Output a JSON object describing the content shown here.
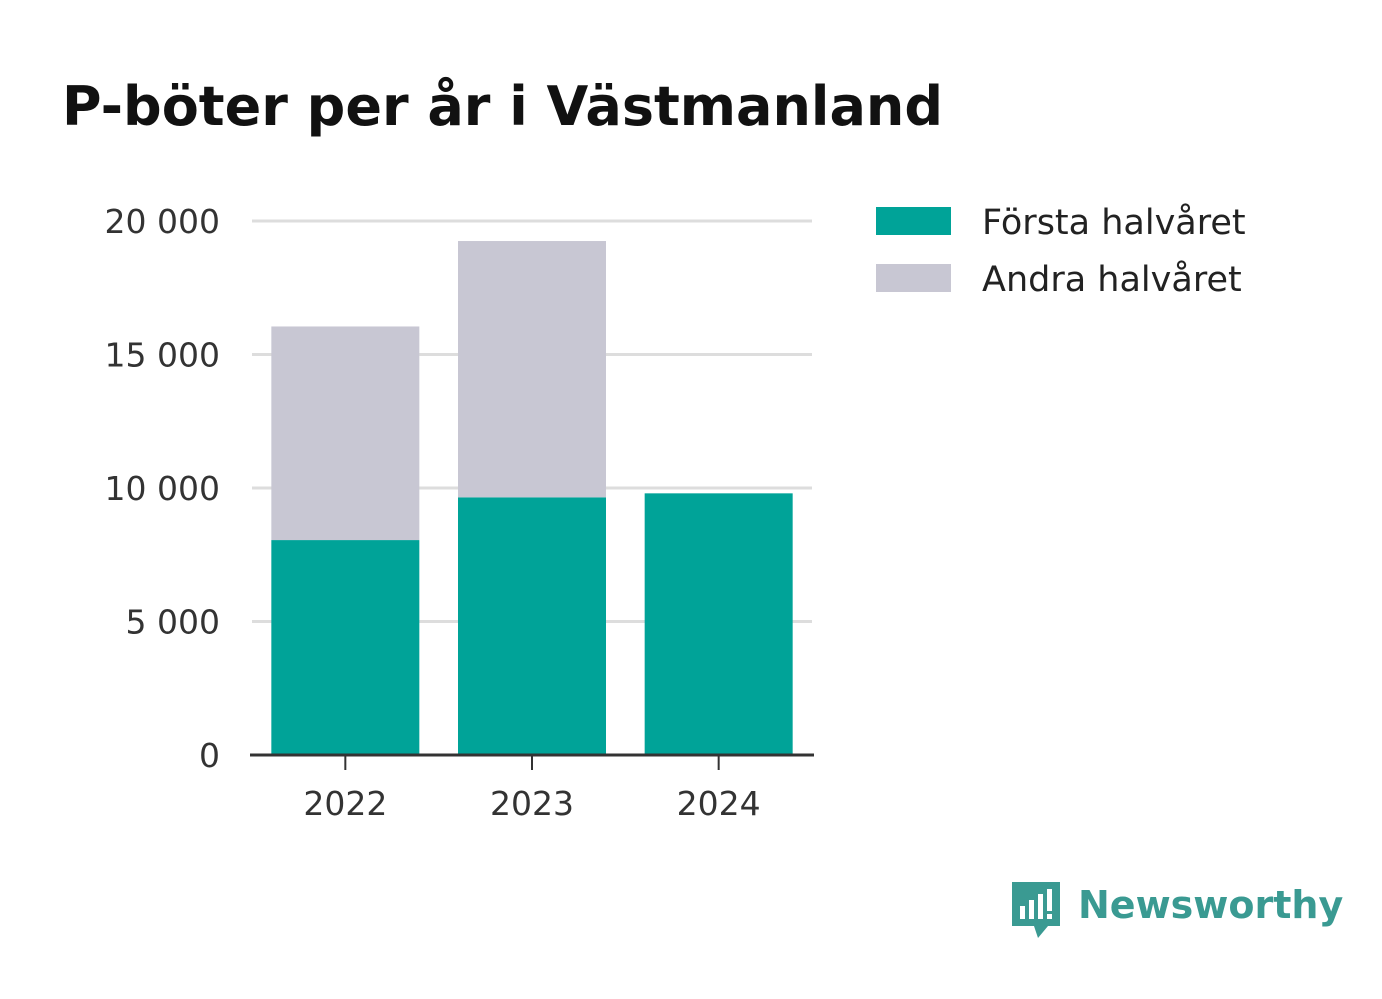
{
  "chart_data": {
    "type": "bar",
    "stacked": true,
    "title": "P-böter per år i Västmanland",
    "categories": [
      "2022",
      "2023",
      "2024"
    ],
    "series": [
      {
        "name": "Första halvåret",
        "color": "#00a398",
        "values": [
          8050,
          9650,
          9800
        ]
      },
      {
        "name": "Andra halvåret",
        "color": "#c8c7d3",
        "values": [
          8000,
          9600,
          null
        ]
      }
    ],
    "ylim": [
      0,
      20000
    ],
    "yticks": [
      0,
      5000,
      10000,
      15000,
      20000
    ],
    "ytick_labels": [
      "0",
      "5 000",
      "10 000",
      "15 000",
      "20 000"
    ],
    "grid": true,
    "legend_position": "top-right"
  },
  "branding": {
    "name": "Newsworthy",
    "color": "#3a9a92",
    "icon": "newsworthy-logo-icon"
  }
}
